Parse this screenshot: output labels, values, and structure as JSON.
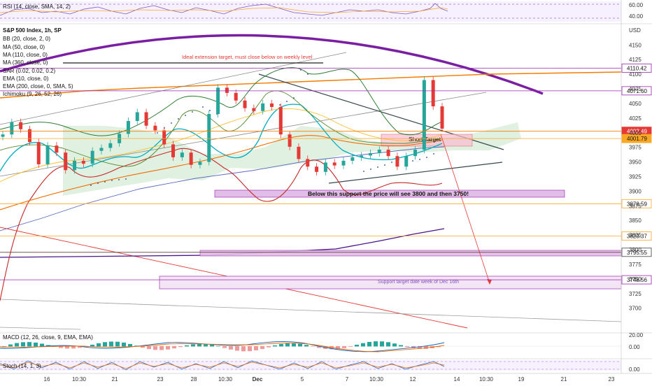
{
  "chart_data": {
    "type": "line",
    "instrument": "S&P 500 Index, 1h, SP",
    "currency": "USD",
    "indicators": [
      "BB (20, close, 2, 0)",
      "MA (50, close, 0)",
      "MA (110, close, 0)",
      "MA (360, close, 0)",
      "SAR (0.02, 0.02, 0.2)",
      "EMA (10, close, 0)",
      "EMA (200, close, 0, SMA, 5)",
      "Ichimoku (9, 26, 52, 26)"
    ],
    "y_ticks": [
      4150,
      4125,
      4100,
      4075,
      4050,
      4025,
      4000,
      3975,
      3950,
      3925,
      3900,
      3875,
      3850,
      3825,
      3800,
      3775,
      3750,
      3725,
      3700
    ],
    "ylim": [
      3665,
      4185
    ],
    "x_ticks": [
      "16",
      "10:30",
      "21",
      "23",
      "28",
      "10:30",
      "Dec",
      "5",
      "7",
      "10:30",
      "12",
      "14",
      "10:30",
      "19",
      "21",
      "23"
    ],
    "price_tags": [
      {
        "label": "4110.42",
        "value": 4110.42,
        "style": "purple-outline"
      },
      {
        "label": "4071.60",
        "value": 4071.6,
        "style": "purple-outline"
      },
      {
        "label": "4002.49",
        "value": 4002.49,
        "style": "red-fill"
      },
      {
        "label": "4001.79",
        "value": 3990,
        "style": "orange-fill"
      },
      {
        "label": "3878.59",
        "value": 3878.59,
        "style": "orange-outline"
      },
      {
        "label": "3823.37",
        "value": 3823.37,
        "style": "orange-outline"
      },
      {
        "label": "3795.55",
        "value": 3795.55,
        "style": "gray-outline"
      },
      {
        "label": "3748.56",
        "value": 3748.56,
        "style": "purple-outline"
      }
    ],
    "price_series": [
      3997,
      4018,
      4006,
      3984,
      3946,
      3978,
      3966,
      3936,
      3952,
      3947,
      3969,
      3974,
      3982,
      3998,
      4020,
      4035,
      4012,
      4004,
      3980,
      3958,
      3966,
      3945,
      3950,
      4032,
      4077,
      4068,
      4055,
      4042,
      4037,
      4050,
      4044,
      3997,
      3976,
      3955,
      3942,
      3933,
      3949,
      3944,
      3952,
      3958,
      3961,
      3965,
      3971,
      3960,
      3942,
      3960,
      3971,
      4090,
      4045,
      4007
    ],
    "annotations": [
      {
        "text": "Ideal extension target, must close below on weekly level",
        "color": "#e53935"
      },
      {
        "text": "Short Target",
        "color": "#1a1a1a"
      },
      {
        "text": "Below this support the price will see 3800 and then 3750!",
        "color": "#1a1a1a"
      },
      {
        "text": "Support target date week of Dec 16th",
        "color": "#7e57c2"
      }
    ],
    "rsi": {
      "label": "RSI (14, close, SMA, 14, 2)",
      "ticks": [
        "60.00",
        "40.00"
      ]
    },
    "macd": {
      "label": "MACD (12, 26, close, 9, EMA, EMA)",
      "ticks": [
        "20.00",
        "0.00"
      ]
    },
    "stoch": {
      "label": "Stoch (14, 1, 3)",
      "ticks": [
        "0.00"
      ]
    }
  }
}
